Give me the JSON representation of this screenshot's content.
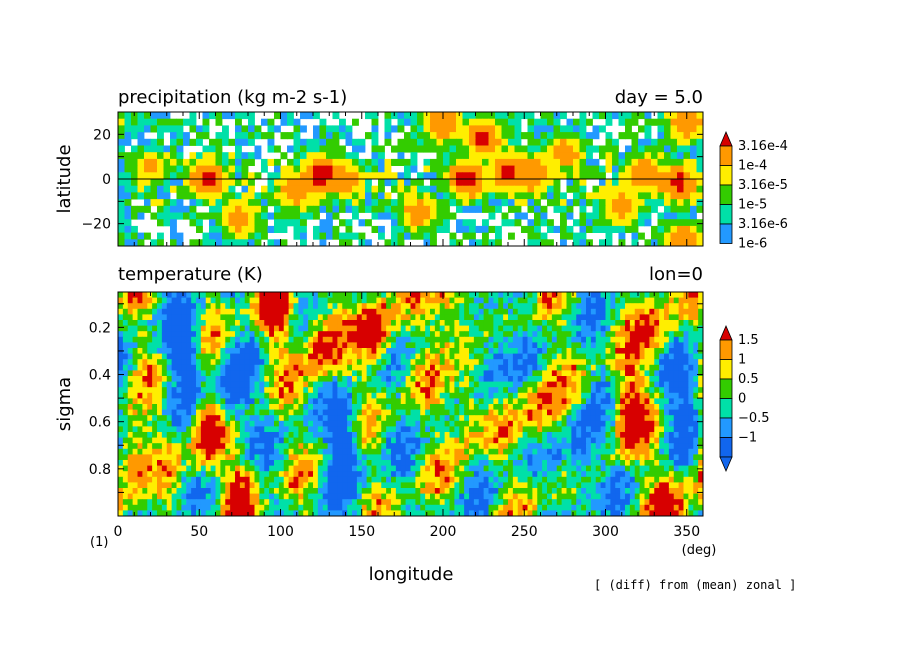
{
  "chart_data": [
    {
      "type": "heatmap",
      "title": "precipitation (kg m-2 s-1)",
      "subtitle": "day = 5.0",
      "ylabel": "latitude",
      "xlim": [
        0,
        360
      ],
      "ylim": [
        -30,
        30
      ],
      "yticks": [
        20,
        0,
        -20
      ],
      "ytick_labels": [
        "20",
        "0",
        "−20"
      ],
      "zero_line": true,
      "colorbar": {
        "labels": [
          "3.16e-4",
          "1e-4",
          "3.16e-5",
          "1e-5",
          "3.16e-6",
          "1e-6"
        ],
        "colors": [
          "#d70000",
          "#ff9900",
          "#ffee00",
          "#33cc00",
          "#00e0a8",
          "#2299ff"
        ]
      },
      "levels": [
        1e-06,
        3.16e-06,
        1e-05,
        3.16e-05,
        0.0001,
        0.000316
      ],
      "features": [
        {
          "lon": 20,
          "lat": 5,
          "peak": 0.0001
        },
        {
          "lon": 55,
          "lat": 0,
          "peak": 0.0004
        },
        {
          "lon": 75,
          "lat": -18,
          "peak": 0.0002
        },
        {
          "lon": 110,
          "lat": -5,
          "peak": 0.0003
        },
        {
          "lon": 125,
          "lat": 2,
          "peak": 0.0005
        },
        {
          "lon": 140,
          "lat": 0,
          "peak": 0.0002
        },
        {
          "lon": 185,
          "lat": -15,
          "peak": 0.0002
        },
        {
          "lon": 200,
          "lat": 25,
          "peak": 0.0003
        },
        {
          "lon": 215,
          "lat": 0,
          "peak": 0.0005
        },
        {
          "lon": 225,
          "lat": 18,
          "peak": 0.0004
        },
        {
          "lon": 240,
          "lat": 3,
          "peak": 0.0004
        },
        {
          "lon": 255,
          "lat": 2,
          "peak": 0.0003
        },
        {
          "lon": 275,
          "lat": 12,
          "peak": 0.0002
        },
        {
          "lon": 310,
          "lat": -12,
          "peak": 0.0002
        },
        {
          "lon": 325,
          "lat": 2,
          "peak": 0.0003
        },
        {
          "lon": 345,
          "lat": -2,
          "peak": 0.0004
        },
        {
          "lon": 350,
          "lat": 25,
          "peak": 0.0003
        },
        {
          "lon": 348,
          "lat": -28,
          "peak": 0.0003
        }
      ]
    },
    {
      "type": "heatmap",
      "title": "temperature (K)",
      "subtitle": "lon=0",
      "xlabel": "longitude",
      "ylabel": "sigma",
      "xlim": [
        0,
        360
      ],
      "ylim": [
        1.0,
        0.05
      ],
      "xticks": [
        0,
        50,
        100,
        150,
        200,
        250,
        300,
        350
      ],
      "xtick_labels": [
        "0",
        "50",
        "100",
        "150",
        "200",
        "250",
        "300",
        "350"
      ],
      "yticks": [
        0.2,
        0.4,
        0.6,
        0.8
      ],
      "ytick_labels": [
        "0.2",
        "0.4",
        "0.6",
        "0.8"
      ],
      "x_unit": "(deg)",
      "colorbar": {
        "labels": [
          "1.5",
          "1",
          "0.5",
          "0",
          "−0.5",
          "−1"
        ],
        "colors": [
          "#d70000",
          "#ff9900",
          "#ffee00",
          "#33cc00",
          "#00e0a8",
          "#2299ff",
          "#1166ee"
        ]
      },
      "levels": [
        -1,
        -0.5,
        0,
        0.5,
        1,
        1.5
      ],
      "features": [
        {
          "lon": 8,
          "sigma": 0.75,
          "amp": 2.0
        },
        {
          "lon": 55,
          "sigma": 0.65,
          "amp": 2.0
        },
        {
          "lon": 75,
          "sigma": 0.92,
          "amp": 1.6
        },
        {
          "lon": 95,
          "sigma": 0.12,
          "amp": 2.0
        },
        {
          "lon": 125,
          "sigma": 0.25,
          "amp": 2.0
        },
        {
          "lon": 160,
          "sigma": 0.22,
          "amp": 2.0
        },
        {
          "lon": 205,
          "sigma": 0.12,
          "amp": 2.0
        },
        {
          "lon": 215,
          "sigma": 0.55,
          "amp": 1.6
        },
        {
          "lon": 260,
          "sigma": 0.55,
          "amp": 1.6
        },
        {
          "lon": 315,
          "sigma": 0.55,
          "amp": 2.0
        },
        {
          "lon": 330,
          "sigma": 0.2,
          "amp": 1.6
        },
        {
          "lon": 340,
          "sigma": 0.95,
          "amp": 1.6
        },
        {
          "lon": 40,
          "sigma": 0.3,
          "amp": -1.8
        },
        {
          "lon": 70,
          "sigma": 0.5,
          "amp": -2.0
        },
        {
          "lon": 140,
          "sigma": 0.7,
          "amp": -2.0
        },
        {
          "lon": 230,
          "sigma": 0.3,
          "amp": -1.8
        },
        {
          "lon": 285,
          "sigma": 0.75,
          "amp": -2.0
        },
        {
          "lon": 350,
          "sigma": 0.5,
          "amp": -1.8
        }
      ]
    }
  ],
  "annotations": {
    "panel_index": "(1)",
    "footnote": "[ (diff) from (mean) zonal ]"
  }
}
